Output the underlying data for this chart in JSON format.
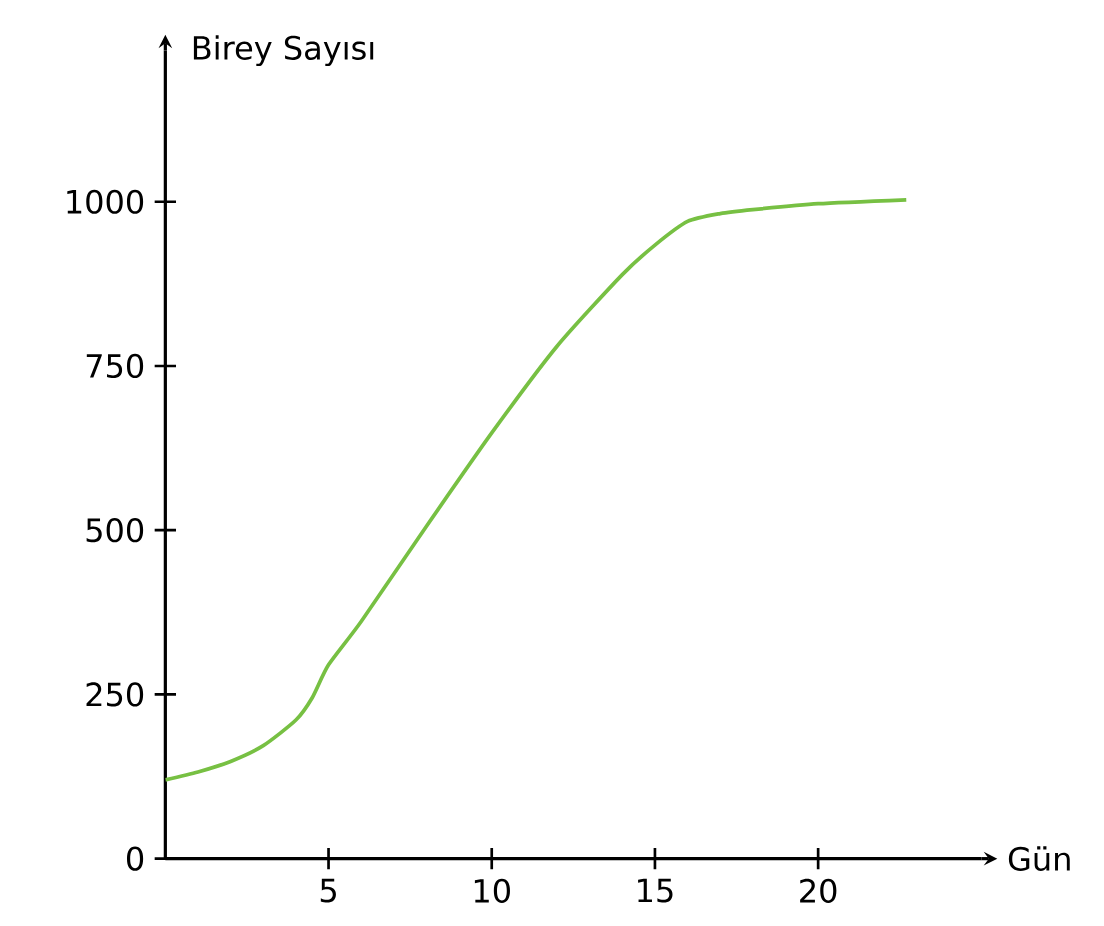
{
  "chart_data": {
    "type": "line",
    "xlabel": "Gün",
    "ylabel": "Birey Sayısı",
    "x": [
      0,
      1,
      2,
      3,
      4,
      4.5,
      5,
      6,
      8,
      10,
      12,
      14,
      15,
      16,
      17,
      18,
      20,
      22.7
    ],
    "series": [
      {
        "color": "#77c043",
        "values": [
          120,
          132,
          148,
          172,
          211,
          245,
          295,
          361,
          506,
          648,
          780,
          889,
          934,
          970,
          982,
          988,
          997,
          1003
        ]
      }
    ],
    "xlim": [
      0,
      25
    ],
    "ylim": [
      0,
      1230
    ],
    "xticks": [
      5,
      10,
      15,
      20
    ],
    "yticks": [
      0,
      250,
      500,
      750,
      1000
    ],
    "grid": false,
    "marker": "none",
    "line_style": "solid"
  }
}
